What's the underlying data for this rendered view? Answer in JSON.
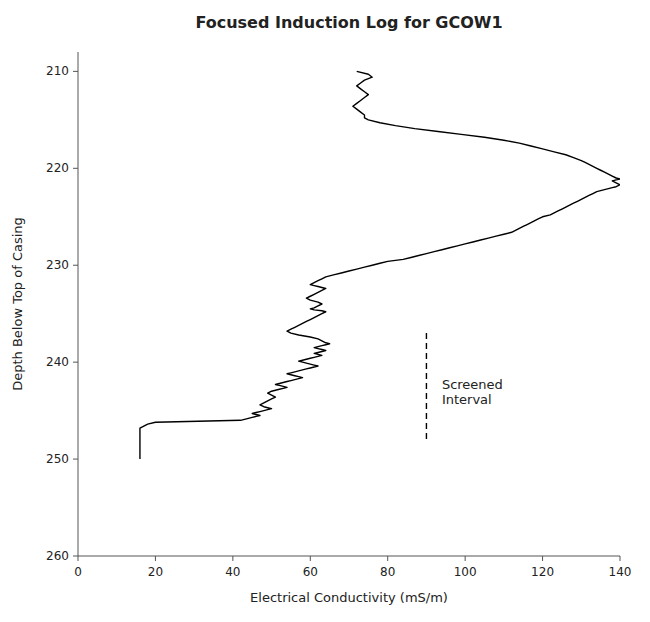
{
  "chart_data": {
    "type": "line",
    "title": "Focused Induction Log for GCOW1",
    "xlabel": "Electrical Conductivity (mS/m)",
    "ylabel": "Depth Below Top of Casing",
    "xlim": [
      0,
      140
    ],
    "ylim": [
      260,
      208
    ],
    "xticks": [
      0,
      20,
      40,
      60,
      80,
      100,
      120,
      140
    ],
    "yticks": [
      210,
      220,
      230,
      240,
      250,
      260
    ],
    "grid": false,
    "color": "#000000",
    "x": [
      72,
      75,
      76,
      74,
      73,
      72,
      73,
      74,
      75,
      74,
      73,
      72,
      71,
      72,
      73,
      74,
      74,
      75,
      78,
      82,
      87,
      93,
      99,
      105,
      110,
      114,
      117,
      120,
      123,
      126,
      128,
      130,
      131,
      132,
      133,
      134,
      135,
      136,
      137,
      138,
      139,
      140,
      139,
      138,
      139,
      140,
      139,
      138,
      136,
      134,
      133,
      132,
      131,
      130,
      129,
      128,
      127,
      126,
      125,
      124,
      123,
      122,
      120,
      119,
      118,
      117,
      116,
      115,
      114,
      113,
      112,
      110,
      108,
      106,
      104,
      102,
      100,
      98,
      96,
      94,
      92,
      90,
      88,
      86,
      84,
      82,
      80,
      78,
      76,
      74,
      72,
      70,
      68,
      66,
      64,
      63,
      62,
      61,
      60,
      61,
      62,
      64,
      63,
      62,
      61,
      60,
      59,
      60,
      62,
      63,
      62,
      61,
      60,
      61,
      63,
      64,
      63,
      62,
      61,
      60,
      59,
      58,
      57,
      56,
      55,
      54,
      55,
      57,
      60,
      62,
      63,
      64,
      65,
      64,
      63,
      62,
      61,
      62,
      63,
      64,
      63,
      62,
      61,
      62,
      63,
      62,
      61,
      60,
      59,
      58,
      57,
      58,
      59,
      60,
      61,
      62,
      61,
      60,
      59,
      58,
      57,
      56,
      55,
      54,
      55,
      56,
      57,
      58,
      57,
      56,
      55,
      54,
      53,
      52,
      51,
      52,
      53,
      54,
      53,
      52,
      51,
      50,
      49,
      50,
      51,
      50,
      49,
      48,
      47,
      48,
      49,
      50,
      49,
      48,
      47,
      46,
      45,
      46,
      47,
      46,
      45,
      44,
      43,
      42,
      20,
      18,
      17,
      16,
      16,
      16,
      16,
      16,
      16,
      16,
      16,
      16,
      16,
      16,
      16
    ],
    "values": [
      210.0,
      210.3,
      210.6,
      210.9,
      211.2,
      211.5,
      211.8,
      212.1,
      212.4,
      212.7,
      213.0,
      213.3,
      213.6,
      213.9,
      214.2,
      214.5,
      214.8,
      215.0,
      215.3,
      215.6,
      215.9,
      216.2,
      216.5,
      216.8,
      217.1,
      217.4,
      217.7,
      218.0,
      218.3,
      218.6,
      218.9,
      219.2,
      219.4,
      219.6,
      219.8,
      220.0,
      220.2,
      220.4,
      220.6,
      220.8,
      221.0,
      221.1,
      221.2,
      221.3,
      221.5,
      221.7,
      221.9,
      222.0,
      222.2,
      222.4,
      222.6,
      222.8,
      223.0,
      223.2,
      223.4,
      223.6,
      223.8,
      224.0,
      224.2,
      224.4,
      224.6,
      224.8,
      225.0,
      225.2,
      225.4,
      225.6,
      225.8,
      226.0,
      226.2,
      226.4,
      226.6,
      226.8,
      227.0,
      227.2,
      227.4,
      227.6,
      227.8,
      228.0,
      228.2,
      228.4,
      228.6,
      228.8,
      229.0,
      229.2,
      229.4,
      229.5,
      229.6,
      229.8,
      230.0,
      230.2,
      230.4,
      230.6,
      230.8,
      231.0,
      231.2,
      231.4,
      231.6,
      231.8,
      232.0,
      232.1,
      232.2,
      232.4,
      232.6,
      232.8,
      233.0,
      233.2,
      233.4,
      233.6,
      233.8,
      234.0,
      234.2,
      234.4,
      234.5,
      234.6,
      234.7,
      234.8,
      235.0,
      235.2,
      235.4,
      235.6,
      235.8,
      236.0,
      236.2,
      236.4,
      236.6,
      236.8,
      237.0,
      237.2,
      237.4,
      237.6,
      237.8,
      238.0,
      238.1,
      238.2,
      238.3,
      238.4,
      238.5,
      238.6,
      238.7,
      238.8,
      238.9,
      239.0,
      239.1,
      239.2,
      239.3,
      239.4,
      239.5,
      239.6,
      239.7,
      239.8,
      239.9,
      240.0,
      240.1,
      240.2,
      240.3,
      240.4,
      240.5,
      240.6,
      240.7,
      240.8,
      240.9,
      241.0,
      241.1,
      241.2,
      241.3,
      241.4,
      241.5,
      241.6,
      241.7,
      241.8,
      241.9,
      242.0,
      242.1,
      242.2,
      242.3,
      242.4,
      242.5,
      242.6,
      242.7,
      242.8,
      242.9,
      243.0,
      243.2,
      243.4,
      243.6,
      243.8,
      244.0,
      244.2,
      244.4,
      244.6,
      244.7,
      244.8,
      244.9,
      245.0,
      245.1,
      245.2,
      245.3,
      245.4,
      245.5,
      245.6,
      245.7,
      245.8,
      245.9,
      246.0,
      246.2,
      246.4,
      246.6,
      246.8,
      247.0,
      247.3,
      247.6,
      247.9,
      248.2,
      248.5,
      248.8,
      249.1,
      249.4,
      249.7,
      250.0
    ],
    "lines": [
      {
        "x": [
          90,
          90
        ],
        "y": [
          237,
          248
        ],
        "line_style": "dashed",
        "color": "#000000"
      }
    ],
    "annotations": [
      {
        "text": "Screened\nInterval",
        "x": 94,
        "y": 243
      }
    ]
  }
}
